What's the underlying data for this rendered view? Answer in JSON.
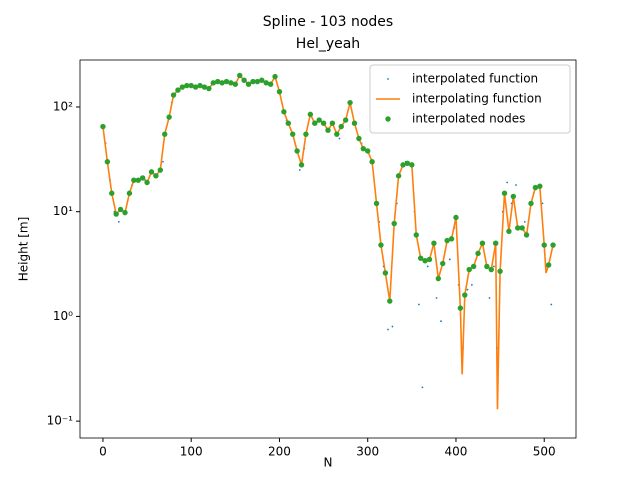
{
  "chart_data": {
    "type": "line",
    "title": "Spline - 103 nodes",
    "subtitle": "Hel_yeah",
    "x_label": "N",
    "y_label": "Height [m]",
    "y_log": true,
    "legend": "upper right",
    "xlim": [
      -26,
      536
    ],
    "ylim": [
      0.069,
      281
    ],
    "xticks": [
      0,
      100,
      200,
      300,
      400,
      500
    ],
    "yticks": [
      {
        "value": 0.1,
        "label": "10⁻¹"
      },
      {
        "value": 1,
        "label": "10⁰"
      },
      {
        "value": 10,
        "label": "10¹"
      },
      {
        "value": 100,
        "label": "10²"
      }
    ],
    "series": [
      {
        "name": "interpolated function",
        "color": "#1f77b4",
        "style": "points",
        "x": [
          3,
          8,
          13,
          18,
          33,
          48,
          68,
          78,
          98,
          128,
          158,
          188,
          208,
          223,
          228,
          243,
          268,
          293,
          313,
          318,
          323,
          328,
          333,
          343,
          353,
          358,
          362,
          368,
          378,
          383,
          393,
          398,
          403,
          408,
          413,
          418,
          428,
          438,
          443,
          448,
          453,
          458,
          463,
          468,
          478,
          488,
          498,
          503,
          508
        ],
        "values": [
          45,
          20,
          10,
          8,
          18,
          20,
          30,
          110,
          158,
          172,
          185,
          170,
          75,
          25,
          40,
          72,
          50,
          45,
          8,
          3,
          0.75,
          0.8,
          12,
          30,
          10,
          1.3,
          0.21,
          3,
          1.5,
          0.9,
          3.5,
          7,
          2,
          0.5,
          1.8,
          2,
          5,
          1.5,
          3,
          0.5,
          10,
          19,
          12,
          18,
          8,
          15,
          12,
          3,
          1.3
        ]
      },
      {
        "name": "interpolating function",
        "color": "#ff7f0e",
        "style": "line",
        "x": [
          0,
          5,
          10,
          15,
          20,
          25,
          30,
          35,
          40,
          45,
          50,
          55,
          60,
          65,
          70,
          75,
          80,
          85,
          90,
          95,
          100,
          105,
          110,
          115,
          120,
          125,
          130,
          135,
          140,
          145,
          150,
          155,
          160,
          165,
          170,
          175,
          180,
          185,
          190,
          195,
          200,
          205,
          210,
          215,
          220,
          225,
          230,
          235,
          240,
          245,
          250,
          255,
          260,
          265,
          270,
          275,
          280,
          285,
          290,
          295,
          300,
          305,
          310,
          315,
          320,
          325,
          330,
          335,
          340,
          345,
          350,
          355,
          360,
          365,
          370,
          375,
          380,
          385,
          390,
          395,
          400,
          405,
          407,
          410,
          415,
          420,
          425,
          430,
          435,
          440,
          445,
          447,
          450,
          455,
          460,
          465,
          470,
          475,
          480,
          485,
          490,
          495,
          500,
          502,
          505,
          510
        ],
        "values": [
          65,
          30,
          15,
          9.5,
          10.5,
          9.8,
          15,
          20,
          20,
          21,
          19,
          24,
          22,
          25,
          55,
          80,
          130,
          145,
          155,
          160,
          160,
          155,
          160,
          155,
          150,
          170,
          175,
          170,
          175,
          170,
          165,
          200,
          180,
          165,
          175,
          175,
          180,
          170,
          165,
          195,
          140,
          90,
          70,
          55,
          38,
          28,
          55,
          85,
          70,
          75,
          70,
          60,
          70,
          55,
          65,
          75,
          110,
          70,
          50,
          40,
          38,
          30,
          12,
          4.8,
          2.6,
          1.4,
          7.7,
          22,
          28,
          29,
          28,
          6,
          3.6,
          3.4,
          3.5,
          5,
          2.3,
          3.2,
          5.3,
          5.5,
          8.8,
          1.2,
          0.28,
          1.6,
          2.8,
          3,
          4,
          5,
          3,
          2.8,
          5,
          0.13,
          2.7,
          15,
          6.5,
          14,
          7,
          7,
          6,
          12,
          17,
          17.5,
          4.8,
          2.6,
          3.1,
          4.8
        ]
      },
      {
        "name": "interpolated nodes",
        "color": "#2ca02c",
        "style": "markers",
        "x": [
          0,
          5,
          10,
          15,
          20,
          25,
          30,
          35,
          40,
          45,
          50,
          55,
          60,
          65,
          70,
          75,
          80,
          85,
          90,
          95,
          100,
          105,
          110,
          115,
          120,
          125,
          130,
          135,
          140,
          145,
          150,
          155,
          160,
          165,
          170,
          175,
          180,
          185,
          190,
          195,
          200,
          205,
          210,
          215,
          220,
          225,
          230,
          235,
          240,
          245,
          250,
          255,
          260,
          265,
          270,
          275,
          280,
          285,
          290,
          295,
          300,
          305,
          310,
          315,
          320,
          325,
          330,
          335,
          340,
          345,
          350,
          355,
          360,
          365,
          370,
          375,
          380,
          385,
          390,
          395,
          400,
          405,
          410,
          415,
          420,
          425,
          430,
          435,
          440,
          445,
          450,
          455,
          460,
          465,
          470,
          475,
          480,
          485,
          490,
          495,
          500,
          505,
          510
        ],
        "values": [
          65,
          30,
          15,
          9.5,
          10.5,
          9.8,
          15,
          20,
          20,
          21,
          19,
          24,
          22,
          25,
          55,
          80,
          130,
          145,
          155,
          160,
          160,
          155,
          160,
          155,
          150,
          170,
          175,
          170,
          175,
          170,
          165,
          200,
          180,
          165,
          175,
          175,
          180,
          170,
          165,
          195,
          140,
          90,
          70,
          55,
          38,
          28,
          55,
          85,
          70,
          75,
          70,
          60,
          70,
          55,
          65,
          75,
          110,
          70,
          50,
          40,
          38,
          30,
          12,
          4.8,
          2.6,
          1.4,
          7.7,
          22,
          28,
          29,
          28,
          6,
          3.6,
          3.4,
          3.5,
          5,
          2.3,
          3.2,
          5.3,
          5.5,
          8.8,
          1.2,
          1.6,
          2.8,
          3,
          4,
          5,
          3,
          2.8,
          5,
          2.7,
          15,
          6.5,
          14,
          7,
          7,
          6,
          12,
          17,
          17.5,
          4.8,
          3.1,
          4.8
        ]
      }
    ]
  }
}
